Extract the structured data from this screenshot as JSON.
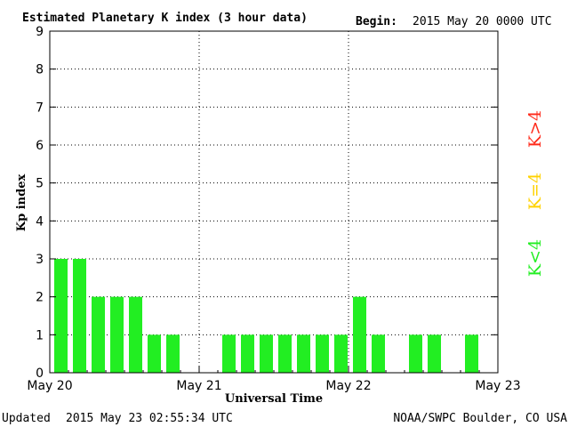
{
  "header": {
    "title": "Estimated Planetary K index (3 hour data)",
    "begin_label": "Begin:",
    "begin_value": "2015 May 20 0000 UTC"
  },
  "footer": {
    "updated_label": "Updated",
    "updated_value": "2015 May 23 02:55:34 UTC",
    "source": "NOAA/SWPC Boulder, CO USA"
  },
  "legend": [
    {
      "label": "K>4",
      "color": "#ff2a1a"
    },
    {
      "label": "K=4",
      "color": "#ffd200"
    },
    {
      "label": "K<4",
      "color": "#22ee22"
    }
  ],
  "chart_data": {
    "type": "bar",
    "ylabel": "Kp index",
    "xlabel": "Universal Time",
    "ylim": [
      0,
      9
    ],
    "yticks": [
      "0",
      "1",
      "2",
      "3",
      "4",
      "5",
      "6",
      "7",
      "8",
      "9"
    ],
    "xticks": [
      "May 20",
      "May 21",
      "May 22",
      "May 23"
    ],
    "bars_per_day": 8,
    "values": [
      3,
      3,
      2,
      2,
      2,
      1,
      1,
      0,
      0,
      1,
      1,
      1,
      1,
      1,
      1,
      1,
      2,
      1,
      0,
      1,
      1,
      0,
      1,
      0
    ],
    "bar_color": "#22ee22",
    "grid": true
  }
}
